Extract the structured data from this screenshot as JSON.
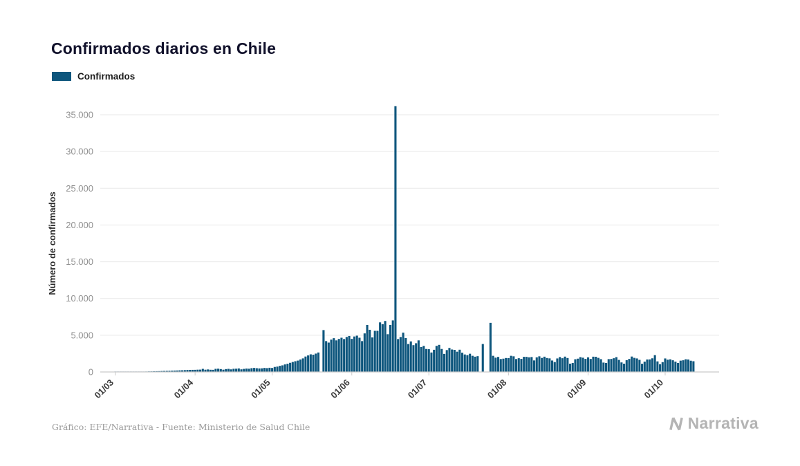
{
  "page": {
    "title": "Confirmados diarios en Chile",
    "legend_label": "Confirmados",
    "credit": "Gráfico: EFE/Narrativa - Fuente: Ministerio de Salud Chile",
    "brand": "Narrativa"
  },
  "colors": {
    "bar": "#0e567d",
    "grid": "#e9e9e9",
    "axis": "#c9c9c9",
    "ytick_text": "#8f8f8f",
    "xtick_text": "#3c3c3c",
    "brand_gray": "#b4b4b4"
  },
  "chart_data": {
    "type": "bar",
    "title": "Confirmados diarios en Chile",
    "legend": [
      "Confirmados"
    ],
    "xlabel": "",
    "ylabel": "Número de confirmados",
    "ylim": [
      0,
      35000
    ],
    "grid": "horizontal",
    "legend_position": "top-left",
    "bar_color": "#0e567d",
    "y_ticks": [
      0,
      5000,
      10000,
      15000,
      20000,
      25000,
      30000,
      35000
    ],
    "y_tick_labels": [
      "0",
      "5.000",
      "10.000",
      "15.000",
      "20.000",
      "25.000",
      "30.000",
      "35.000"
    ],
    "x_tick_labels": [
      "01/03",
      "01/04",
      "01/05",
      "01/06",
      "01/07",
      "01/08",
      "01/09",
      "01/10"
    ],
    "x_tick_day_index": [
      0,
      31,
      61,
      92,
      122,
      153,
      184,
      214
    ],
    "x_start_label": "01/03",
    "x_unit": "day",
    "values": [
      3,
      4,
      5,
      8,
      10,
      13,
      17,
      23,
      28,
      33,
      43,
      55,
      60,
      75,
      81,
      95,
      103,
      110,
      130,
      142,
      150,
      160,
      176,
      190,
      200,
      220,
      230,
      250,
      270,
      280,
      289,
      293,
      312,
      320,
      424,
      310,
      344,
      301,
      294,
      426,
      445,
      392,
      312,
      392,
      425,
      356,
      434,
      445,
      478,
      358,
      419,
      464,
      444,
      516,
      552,
      512,
      482,
      494,
      552,
      520,
      572,
      545,
      685,
      728,
      833,
      900,
      1027,
      1120,
      1247,
      1360,
      1458,
      1547,
      1700,
      1850,
      2100,
      2250,
      2400,
      2350,
      2500,
      2650,
      0,
      5700,
      4200,
      4000,
      4400,
      4600,
      4300,
      4500,
      4660,
      4480,
      4760,
      4900,
      4500,
      4830,
      4940,
      4660,
      4200,
      5250,
      6400,
      5740,
      4700,
      5600,
      5600,
      6750,
      6500,
      6940,
      5140,
      6400,
      7020,
      36179,
      4480,
      4760,
      5350,
      4610,
      3800,
      4160,
      3650,
      3910,
      4300,
      3390,
      3550,
      3130,
      3100,
      2650,
      3020,
      3550,
      3690,
      3130,
      2460,
      2980,
      3270,
      3060,
      3010,
      2760,
      3030,
      2620,
      2380,
      2290,
      2480,
      2200,
      2080,
      2150,
      0,
      3804,
      0,
      0,
      6690,
      2200,
      1950,
      2050,
      1760,
      1810,
      1900,
      1890,
      2200,
      2130,
      1760,
      1870,
      1780,
      2060,
      2060,
      1990,
      2030,
      1570,
      1990,
      2130,
      1910,
      2080,
      1900,
      1850,
      1560,
      1350,
      1840,
      2030,
      1870,
      2090,
      1900,
      1130,
      1220,
      1730,
      1810,
      2020,
      1940,
      1780,
      1990,
      1770,
      2080,
      2070,
      1920,
      1740,
      1280,
      1230,
      1750,
      1770,
      1870,
      2020,
      1640,
      1300,
      1130,
      1600,
      1770,
      2100,
      1920,
      1840,
      1650,
      1120,
      1410,
      1700,
      1710,
      1860,
      2290,
      1440,
      1060,
      1340,
      1840,
      1670,
      1720,
      1590,
      1410,
      1230,
      1540,
      1590,
      1730,
      1700,
      1530,
      1460
    ]
  }
}
